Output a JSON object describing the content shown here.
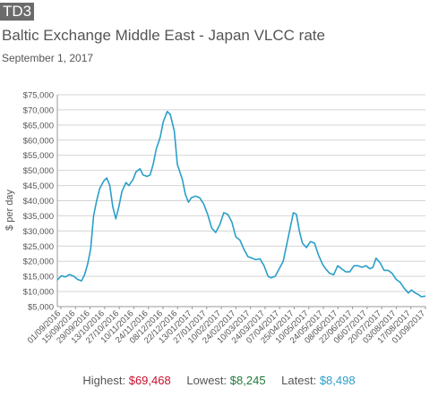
{
  "header": {
    "badge": "TD3",
    "title": "Baltic Exchange Middle East - Japan VLCC rate",
    "date": "September 1, 2017"
  },
  "stats": {
    "highest_label": "Highest:",
    "highest_value": "$69,468",
    "lowest_label": "Lowest:",
    "lowest_value": "$8,245",
    "latest_label": "Latest:",
    "latest_value": "$8,498"
  },
  "colors": {
    "line": "#2a9fc9",
    "grid": "#d4d4d4",
    "text": "#555555",
    "highest": "#c8102e",
    "lowest": "#1f7a3a",
    "latest": "#2a9fc9"
  },
  "chart_data": {
    "type": "line",
    "ylabel": "$ per day",
    "ylim": [
      5000,
      75000
    ],
    "y_ticks": [
      5000,
      10000,
      15000,
      20000,
      25000,
      30000,
      35000,
      40000,
      45000,
      50000,
      55000,
      60000,
      65000,
      70000,
      75000
    ],
    "y_tick_labels": [
      "$5,000",
      "$10,000",
      "$15,000",
      "$20,000",
      "$25,000",
      "$30,000",
      "$35,000",
      "$40,000",
      "$45,000",
      "$50,000",
      "$55,000",
      "$60,000",
      "$65,000",
      "$70,000",
      "$75,000"
    ],
    "xlim": [
      "2016-09-01",
      "2017-09-01"
    ],
    "x_tick_labels": [
      "01/09/2016",
      "15/09/2016",
      "29/09/2016",
      "13/10/2016",
      "27/10/2016",
      "10/11/2016",
      "24/11/2016",
      "08/12/2016",
      "22/12/2016",
      "13/01/2017",
      "27/01/2017",
      "10/02/2017",
      "24/02/2017",
      "10/03/2017",
      "24/03/2017",
      "07/04/2017",
      "25/04/2017",
      "10/05/2017",
      "24/05/2017",
      "08/06/2017",
      "22/06/2017",
      "06/07/2017",
      "20/07/2017",
      "03/08/2017",
      "17/08/2017",
      "01/09/2017"
    ],
    "grid": true,
    "legend": "none",
    "series": [
      {
        "points": [
          [
            "2016-09-01",
            13800
          ],
          [
            "2016-09-05",
            15200
          ],
          [
            "2016-09-09",
            14800
          ],
          [
            "2016-09-13",
            15600
          ],
          [
            "2016-09-17",
            15100
          ],
          [
            "2016-09-21",
            14000
          ],
          [
            "2016-09-25",
            13500
          ],
          [
            "2016-09-28",
            15500
          ],
          [
            "2016-10-01",
            19000
          ],
          [
            "2016-10-04",
            24000
          ],
          [
            "2016-10-07",
            35000
          ],
          [
            "2016-10-10",
            40000
          ],
          [
            "2016-10-13",
            44000
          ],
          [
            "2016-10-17",
            46500
          ],
          [
            "2016-10-20",
            47500
          ],
          [
            "2016-10-23",
            45000
          ],
          [
            "2016-10-26",
            38000
          ],
          [
            "2016-10-29",
            34000
          ],
          [
            "2016-11-01",
            38000
          ],
          [
            "2016-11-04",
            43000
          ],
          [
            "2016-11-08",
            46000
          ],
          [
            "2016-11-11",
            45000
          ],
          [
            "2016-11-15",
            47000
          ],
          [
            "2016-11-18",
            49500
          ],
          [
            "2016-11-22",
            50500
          ],
          [
            "2016-11-25",
            48500
          ],
          [
            "2016-11-29",
            48000
          ],
          [
            "2016-12-02",
            48500
          ],
          [
            "2016-12-05",
            52000
          ],
          [
            "2016-12-08",
            57000
          ],
          [
            "2016-12-12",
            61000
          ],
          [
            "2016-12-15",
            66000
          ],
          [
            "2016-12-19",
            69468
          ],
          [
            "2016-12-22",
            68500
          ],
          [
            "2016-12-26",
            63000
          ],
          [
            "2016-12-29",
            52000
          ],
          [
            "2017-01-03",
            47000
          ],
          [
            "2017-01-06",
            42000
          ],
          [
            "2017-01-09",
            39500
          ],
          [
            "2017-01-12",
            41000
          ],
          [
            "2017-01-16",
            41500
          ],
          [
            "2017-01-20",
            41000
          ],
          [
            "2017-01-24",
            39000
          ],
          [
            "2017-01-28",
            35500
          ],
          [
            "2017-02-01",
            31000
          ],
          [
            "2017-02-05",
            29500
          ],
          [
            "2017-02-09",
            32000
          ],
          [
            "2017-02-13",
            36000
          ],
          [
            "2017-02-17",
            35500
          ],
          [
            "2017-02-21",
            33000
          ],
          [
            "2017-02-25",
            28000
          ],
          [
            "2017-03-01",
            27000
          ],
          [
            "2017-03-05",
            24000
          ],
          [
            "2017-03-09",
            21500
          ],
          [
            "2017-03-13",
            21000
          ],
          [
            "2017-03-17",
            20500
          ],
          [
            "2017-03-21",
            20800
          ],
          [
            "2017-03-25",
            18500
          ],
          [
            "2017-03-29",
            15000
          ],
          [
            "2017-04-01",
            14500
          ],
          [
            "2017-04-05",
            15000
          ],
          [
            "2017-04-09",
            17500
          ],
          [
            "2017-04-13",
            20000
          ],
          [
            "2017-04-18",
            28000
          ],
          [
            "2017-04-23",
            36000
          ],
          [
            "2017-04-26",
            35500
          ],
          [
            "2017-04-29",
            30000
          ],
          [
            "2017-05-02",
            26000
          ],
          [
            "2017-05-06",
            24500
          ],
          [
            "2017-05-10",
            26500
          ],
          [
            "2017-05-14",
            26000
          ],
          [
            "2017-05-18",
            22000
          ],
          [
            "2017-05-22",
            19000
          ],
          [
            "2017-05-25",
            17500
          ],
          [
            "2017-05-29",
            16000
          ],
          [
            "2017-06-02",
            15500
          ],
          [
            "2017-06-06",
            18500
          ],
          [
            "2017-06-10",
            17500
          ],
          [
            "2017-06-14",
            16500
          ],
          [
            "2017-06-18",
            16500
          ],
          [
            "2017-06-22",
            18500
          ],
          [
            "2017-06-26",
            18500
          ],
          [
            "2017-06-30",
            18000
          ],
          [
            "2017-07-04",
            18500
          ],
          [
            "2017-07-08",
            17500
          ],
          [
            "2017-07-11",
            18000
          ],
          [
            "2017-07-14",
            21000
          ],
          [
            "2017-07-18",
            19500
          ],
          [
            "2017-07-22",
            17000
          ],
          [
            "2017-07-26",
            17000
          ],
          [
            "2017-07-30",
            16000
          ],
          [
            "2017-08-03",
            14000
          ],
          [
            "2017-08-07",
            13000
          ],
          [
            "2017-08-11",
            11000
          ],
          [
            "2017-08-15",
            9500
          ],
          [
            "2017-08-18",
            10500
          ],
          [
            "2017-08-22",
            9500
          ],
          [
            "2017-08-25",
            9000
          ],
          [
            "2017-08-28",
            8245
          ],
          [
            "2017-09-01",
            8498
          ]
        ]
      }
    ]
  }
}
